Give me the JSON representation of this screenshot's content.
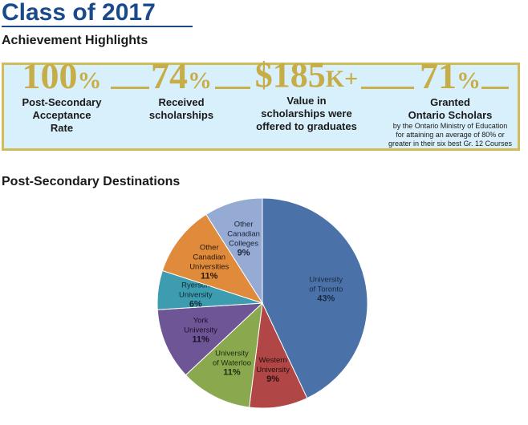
{
  "page": {
    "title": "Class of 2017",
    "highlights_heading": "Achievement Highlights",
    "destinations_heading": "Post-Secondary Destinations"
  },
  "highlights": [
    {
      "number": "100",
      "suffix": "%",
      "label_lines": [
        "Post-Secondary",
        "Acceptance",
        "Rate"
      ],
      "value_percent": 100
    },
    {
      "number": "74",
      "suffix": "%",
      "label_lines": [
        "Received",
        "scholarships"
      ],
      "value_percent": 74
    },
    {
      "number": "$185",
      "suffix": "K+",
      "label_lines": [
        "Value in",
        "scholarships were",
        "offered to graduates"
      ]
    },
    {
      "number": "71",
      "suffix": "%",
      "label_lines": [
        "Granted",
        "Ontario Scholars"
      ],
      "note_lines": [
        "by the Ontario Ministry of Education",
        "for attaining an average of 80% or",
        "greater in their six best Gr. 12 Courses"
      ],
      "value_percent": 71
    }
  ],
  "colors": {
    "title": "#1a4a8c",
    "gold": "#c7ad47",
    "banner_bg": "#d8f0fb"
  },
  "chart_data": {
    "type": "pie",
    "title": "",
    "slices": [
      {
        "label_lines": [
          "University",
          "of Toronto"
        ],
        "value": 43,
        "value_label": "43%",
        "color": "#4a72a8",
        "text_color": "#1a2a40"
      },
      {
        "label_lines": [
          "Western",
          "University"
        ],
        "value": 9,
        "value_label": "9%",
        "color": "#b04645",
        "text_color": "#2a1010"
      },
      {
        "label_lines": [
          "University",
          "of Waterloo"
        ],
        "value": 11,
        "value_label": "11%",
        "color": "#8aa84e",
        "text_color": "#1f2a10"
      },
      {
        "label_lines": [
          "York",
          "University"
        ],
        "value": 11,
        "value_label": "11%",
        "color": "#6e5596",
        "text_color": "#1a1228"
      },
      {
        "label_lines": [
          "Ryerson",
          "University"
        ],
        "value": 6,
        "value_label": "6%",
        "color": "#3d9cb0",
        "text_color": "#0f2a30"
      },
      {
        "label_lines": [
          "Other",
          "Canadian",
          "Universities"
        ],
        "value": 11,
        "value_label": "11%",
        "color": "#e08a3c",
        "text_color": "#2a1a08"
      },
      {
        "label_lines": [
          "Other",
          "Canadian",
          "Colleges"
        ],
        "value": 9,
        "value_label": "9%",
        "color": "#95abd4",
        "text_color": "#1a2238"
      }
    ]
  }
}
